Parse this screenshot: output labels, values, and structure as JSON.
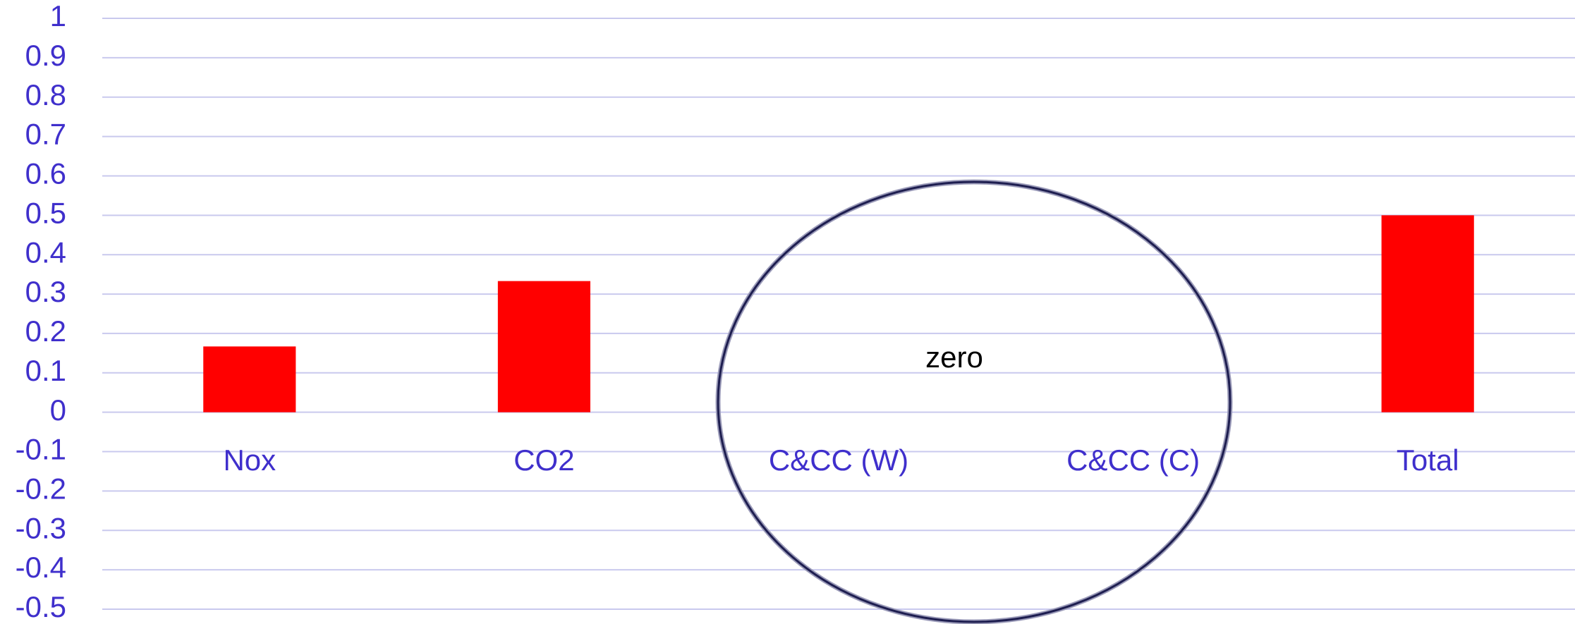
{
  "chart_data": {
    "type": "bar",
    "categories": [
      "Nox",
      "CO2",
      "C&CC (W)",
      "C&CC (C)",
      "Total"
    ],
    "values": [
      0.167,
      0.333,
      0,
      0,
      0.5
    ],
    "color": "#ff0000",
    "ylim": [
      -0.5,
      1
    ],
    "yticks": [
      -0.5,
      -0.4,
      -0.3,
      -0.2,
      -0.1,
      0,
      0.1,
      0.2,
      0.3,
      0.4,
      0.5,
      0.6,
      0.7,
      0.8,
      0.9,
      1
    ],
    "grid": true,
    "annotation": "zero"
  }
}
